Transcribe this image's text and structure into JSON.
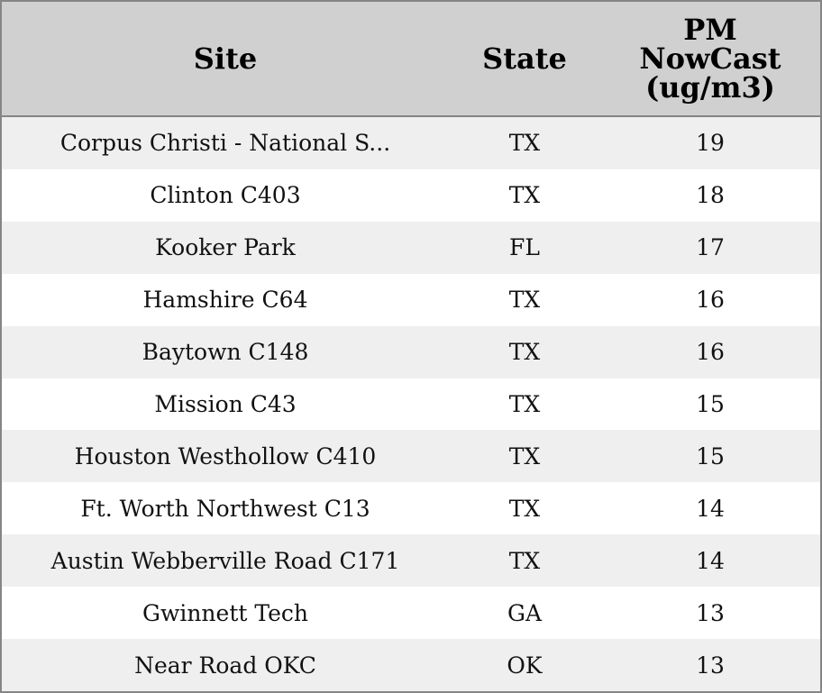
{
  "table": {
    "columns": [
      "Site",
      "State",
      "PM NowCast (ug/m3)"
    ],
    "rows": [
      [
        "Corpus Christi - National S...",
        "TX",
        19
      ],
      [
        "Clinton C403",
        "TX",
        18
      ],
      [
        "Kooker Park",
        "FL",
        17
      ],
      [
        "Hamshire C64",
        "TX",
        16
      ],
      [
        "Baytown C148",
        "TX",
        16
      ],
      [
        "Mission C43",
        "TX",
        15
      ],
      [
        "Houston Westhollow C410",
        "TX",
        15
      ],
      [
        "Ft. Worth Northwest C13",
        "TX",
        14
      ],
      [
        "Austin Webberville Road C171",
        "TX",
        14
      ],
      [
        "Gwinnett Tech",
        "GA",
        13
      ],
      [
        "Near Road OKC",
        "OK",
        13
      ]
    ]
  }
}
